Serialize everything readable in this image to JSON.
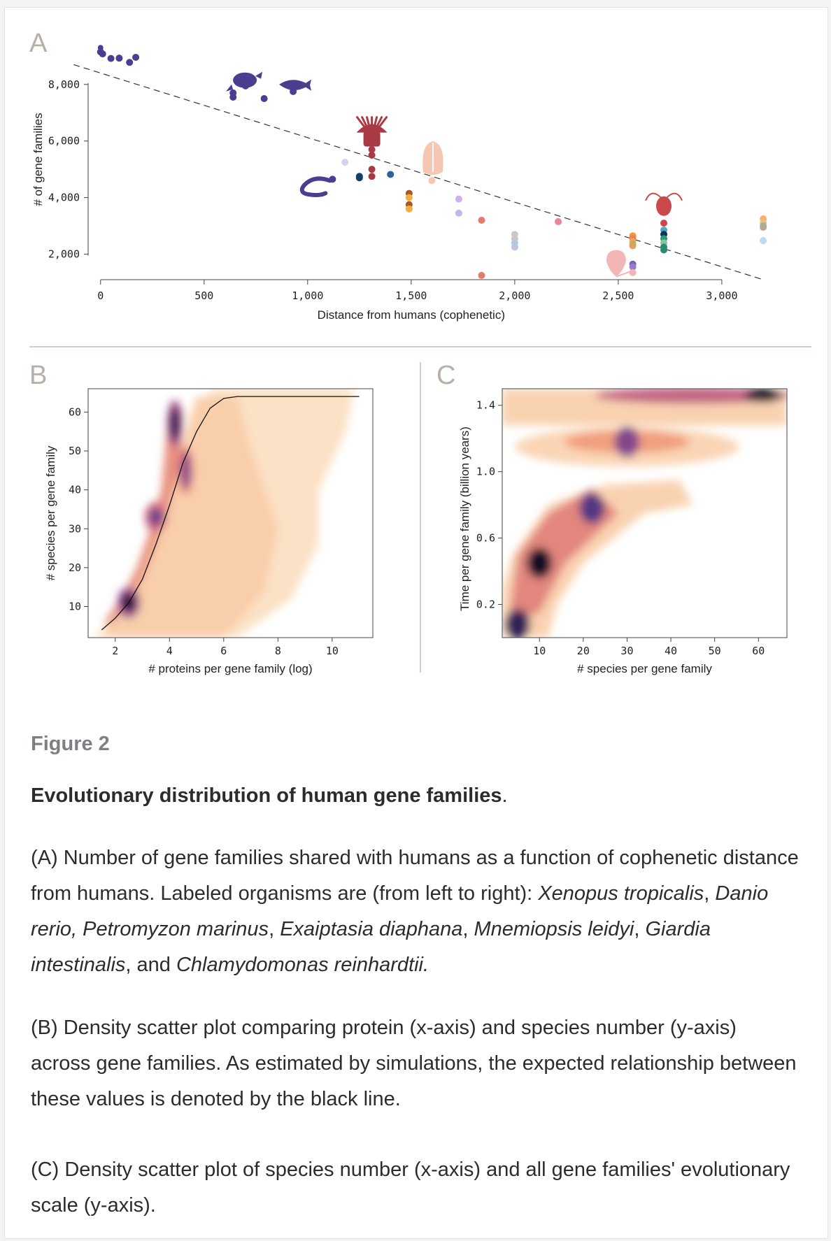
{
  "figure_label": "Figure 2",
  "figure_title": "Evolutionary distribution of human gene families",
  "figure_title_end": ".",
  "caption": {
    "a": [
      {
        "t": "(A) Number of gene families shared with humans as a function of cophenetic distance from humans. Labeled organisms are (from left to right): ",
        "i": false
      },
      {
        "t": "Xenopus tropicalis",
        "i": true
      },
      {
        "t": ", ",
        "i": false
      },
      {
        "t": "Danio rerio, Petromyzon marinus",
        "i": true
      },
      {
        "t": ", ",
        "i": false
      },
      {
        "t": "Exaiptasia diaphana",
        "i": true
      },
      {
        "t": ", ",
        "i": false
      },
      {
        "t": "Mnemiopsis leidyi",
        "i": true
      },
      {
        "t": ", ",
        "i": false
      },
      {
        "t": "Giardia intestinalis",
        "i": true
      },
      {
        "t": ", and ",
        "i": false
      },
      {
        "t": "Chlamydomonas reinhardtii.",
        "i": true
      }
    ],
    "b": "(B) Density scatter plot comparing protein (x-axis) and species number (y-axis) across gene families. As estimated by simulations, the expected relationship between these values is denoted by the black line.",
    "c": "(C) Density scatter plot of species number (x-axis) and all gene families' evolutionary scale (y-axis)."
  },
  "chart_data": [
    {
      "panel": "A",
      "type": "scatter",
      "xlabel": "Distance from humans (cophenetic)",
      "ylabel": "# of gene families",
      "xticks": [
        "0",
        "500",
        "1,000",
        "1,500",
        "2,000",
        "2,500",
        "3,000"
      ],
      "xtick_values": [
        0,
        500,
        1000,
        1500,
        2000,
        2500,
        3000
      ],
      "yticks": [
        "2,000",
        "4,000",
        "6,000",
        "8,000"
      ],
      "ytick_values": [
        2000,
        4000,
        6000,
        8000
      ],
      "xlim": [
        -60,
        3230
      ],
      "ylim": [
        1100,
        9700
      ],
      "trend_line": {
        "style": "dashed",
        "color": "#333333",
        "points": [
          [
            -130,
            8700
          ],
          [
            3200,
            1100
          ]
        ]
      },
      "points": [
        {
          "x": 0,
          "y": 9150,
          "c": "#4b3d8f"
        },
        {
          "x": 10,
          "y": 9080,
          "c": "#4b3d8f"
        },
        {
          "x": 50,
          "y": 8920,
          "c": "#4b3d8f"
        },
        {
          "x": 90,
          "y": 8930,
          "c": "#4b3d8f"
        },
        {
          "x": 140,
          "y": 8780,
          "c": "#4b3d8f"
        },
        {
          "x": 170,
          "y": 8960,
          "c": "#4b3d8f"
        },
        {
          "x": 640,
          "y": 7700,
          "c": "#4b3d8f"
        },
        {
          "x": 640,
          "y": 7550,
          "c": "#4b3d8f"
        },
        {
          "x": 700,
          "y": 7950,
          "c": "#4b3d8f"
        },
        {
          "x": 790,
          "y": 7500,
          "c": "#4b3d8f"
        },
        {
          "x": 930,
          "y": 7750,
          "c": "#4b3d8f"
        },
        {
          "x": 1120,
          "y": 4650,
          "c": "#4b3d8f"
        },
        {
          "x": 1180,
          "y": 5250,
          "c": "#d6d2ef"
        },
        {
          "x": 1250,
          "y": 4750,
          "c": "#123f6a"
        },
        {
          "x": 1250,
          "y": 4700,
          "c": "#123f6a"
        },
        {
          "x": 1310,
          "y": 5700,
          "c": "#a93a44"
        },
        {
          "x": 1310,
          "y": 5500,
          "c": "#a93a44"
        },
        {
          "x": 1310,
          "y": 5000,
          "c": "#a93a44"
        },
        {
          "x": 1310,
          "y": 4750,
          "c": "#a93a44"
        },
        {
          "x": 1400,
          "y": 4820,
          "c": "#2f62a3"
        },
        {
          "x": 1490,
          "y": 4150,
          "c": "#a05a2c"
        },
        {
          "x": 1490,
          "y": 4000,
          "c": "#f0b040"
        },
        {
          "x": 1490,
          "y": 3750,
          "c": "#a05a2c"
        },
        {
          "x": 1490,
          "y": 3600,
          "c": "#f0b040"
        },
        {
          "x": 1600,
          "y": 4600,
          "c": "#f5c6b1"
        },
        {
          "x": 1730,
          "y": 3950,
          "c": "#c9b3ea"
        },
        {
          "x": 1730,
          "y": 3450,
          "c": "#c9b3ea"
        },
        {
          "x": 1840,
          "y": 3200,
          "c": "#e27d6e"
        },
        {
          "x": 1840,
          "y": 1250,
          "c": "#e27d6e"
        },
        {
          "x": 2000,
          "y": 2700,
          "c": "#c9c9c9"
        },
        {
          "x": 2000,
          "y": 2550,
          "c": "#c9c9c9"
        },
        {
          "x": 2000,
          "y": 2400,
          "c": "#b8c8d8"
        },
        {
          "x": 2000,
          "y": 2250,
          "c": "#b8c8d8"
        },
        {
          "x": 2210,
          "y": 3150,
          "c": "#e98597"
        },
        {
          "x": 2570,
          "y": 2650,
          "c": "#f29a3a"
        },
        {
          "x": 2570,
          "y": 2550,
          "c": "#ee7a60"
        },
        {
          "x": 2570,
          "y": 2450,
          "c": "#f2a55a"
        },
        {
          "x": 2570,
          "y": 2350,
          "c": "#9bbf6b"
        },
        {
          "x": 2570,
          "y": 2300,
          "c": "#e0a060"
        },
        {
          "x": 2570,
          "y": 1650,
          "c": "#6f66b8"
        },
        {
          "x": 2570,
          "y": 1550,
          "c": "#9a7bc4"
        },
        {
          "x": 2570,
          "y": 1350,
          "c": "#f2b6b6"
        },
        {
          "x": 2720,
          "y": 3100,
          "c": "#c94a4a"
        },
        {
          "x": 2720,
          "y": 2850,
          "c": "#4fa6c8"
        },
        {
          "x": 2720,
          "y": 2700,
          "c": "#0f3552"
        },
        {
          "x": 2720,
          "y": 2550,
          "c": "#2a9c72"
        },
        {
          "x": 2720,
          "y": 2400,
          "c": "#86c49b"
        },
        {
          "x": 2720,
          "y": 2250,
          "c": "#2a8c6c"
        },
        {
          "x": 2720,
          "y": 2150,
          "c": "#2a8c6c"
        },
        {
          "x": 3200,
          "y": 3250,
          "c": "#f7b267"
        },
        {
          "x": 3200,
          "y": 3100,
          "c": "#e8c28a"
        },
        {
          "x": 3200,
          "y": 3000,
          "c": "#8fb7a8"
        },
        {
          "x": 3200,
          "y": 2950,
          "c": "#b7a98c"
        },
        {
          "x": 3200,
          "y": 2480,
          "c": "#b9dcef"
        }
      ],
      "organisms": [
        "frog",
        "zebrafish",
        "lamprey",
        "anemone",
        "ctenophore",
        "giardia",
        "chlamydomonas"
      ]
    },
    {
      "panel": "B",
      "type": "heatmap",
      "xlabel": "#  proteins per gene family (log)",
      "ylabel": "#  species per gene family",
      "xticks": [
        "2",
        "4",
        "6",
        "8",
        "10"
      ],
      "xtick_values": [
        2,
        4,
        6,
        8,
        10
      ],
      "yticks": [
        "10",
        "20",
        "30",
        "40",
        "50",
        "60"
      ],
      "ytick_values": [
        10,
        20,
        30,
        40,
        50,
        60
      ],
      "xlim": [
        1,
        11.5
      ],
      "ylim": [
        2,
        66
      ],
      "colormap": [
        "#fbf1e6",
        "#fbe0c4",
        "#f8c8a2",
        "#f2a07f",
        "#d7757e",
        "#a2508c",
        "#5b3c8c",
        "#2a1d52",
        "#050308"
      ],
      "density_hotspots": [
        {
          "x": 2.5,
          "y": 11,
          "w": 1.0
        },
        {
          "x": 4.2,
          "y": 57,
          "w": 0.85
        },
        {
          "x": 3.5,
          "y": 33,
          "w": 0.55
        },
        {
          "x": 4.6,
          "y": 45,
          "w": 0.45
        }
      ],
      "expected_curve": [
        [
          1.5,
          4
        ],
        [
          2,
          7
        ],
        [
          2.5,
          11
        ],
        [
          3,
          17
        ],
        [
          3.5,
          26
        ],
        [
          4,
          36
        ],
        [
          4.5,
          47
        ],
        [
          5,
          55
        ],
        [
          5.5,
          61
        ],
        [
          6,
          63.5
        ],
        [
          6.5,
          64
        ],
        [
          11,
          64
        ]
      ]
    },
    {
      "panel": "C",
      "type": "heatmap",
      "xlabel": "#  species per gene family",
      "ylabel": "Time per gene  family (billion years)",
      "xticks": [
        "10",
        "20",
        "30",
        "40",
        "50",
        "60"
      ],
      "xtick_values": [
        10,
        20,
        30,
        40,
        50,
        60
      ],
      "yticks": [
        "0.2",
        "0.6",
        "1.0",
        "1.4"
      ],
      "ytick_values": [
        0.2,
        0.6,
        1.0,
        1.4
      ],
      "xlim": [
        1.5,
        66.5
      ],
      "ylim": [
        0,
        1.5
      ],
      "colormap": [
        "#fbf1e6",
        "#fbe0c4",
        "#f8c8a2",
        "#f2a07f",
        "#d7757e",
        "#a2508c",
        "#5b3c8c",
        "#2a1d52",
        "#050308"
      ],
      "density_hotspots": [
        {
          "x": 10,
          "y": 0.45,
          "w": 1.0
        },
        {
          "x": 5,
          "y": 0.08,
          "w": 0.8
        },
        {
          "x": 61,
          "y": 1.46,
          "w": 1.0
        },
        {
          "x": 30,
          "y": 1.18,
          "w": 0.4
        },
        {
          "x": 22,
          "y": 0.78,
          "w": 0.6
        }
      ]
    }
  ]
}
